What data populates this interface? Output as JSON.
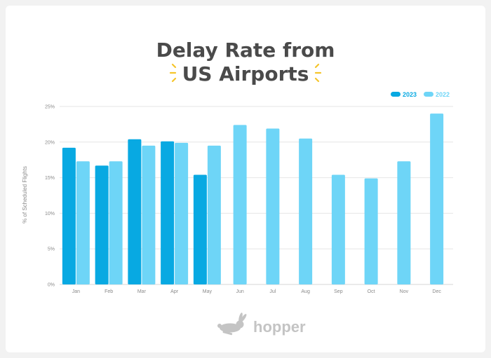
{
  "title_line1": "Delay Rate from",
  "title_line2": "US Airports",
  "brand": "hopper",
  "colors": {
    "s2023": "#08a9e2",
    "s2022": "#6ed5f7",
    "sparkle": "#f5c52b",
    "grid": "#e6e6e6"
  },
  "chart_data": {
    "type": "bar",
    "title": "Delay Rate from US Airports",
    "ylabel": "% of Scheduled Flights",
    "xlabel": "",
    "ylim": [
      0,
      25
    ],
    "yticks": [
      "0%",
      "5%",
      "10%",
      "15%",
      "20%",
      "25%"
    ],
    "grid": true,
    "legend": "top-right",
    "categories": [
      "Jan",
      "Feb",
      "Mar",
      "Apr",
      "May",
      "Jun",
      "Jul",
      "Aug",
      "Sep",
      "Oct",
      "Nov",
      "Dec"
    ],
    "series": [
      {
        "name": "2023",
        "values": [
          19.2,
          16.7,
          20.4,
          20.1,
          15.4,
          null,
          null,
          null,
          null,
          null,
          null,
          null
        ]
      },
      {
        "name": "2022",
        "values": [
          17.3,
          17.3,
          19.5,
          19.9,
          19.5,
          22.4,
          21.9,
          20.5,
          15.4,
          14.9,
          17.3,
          24.0
        ]
      }
    ]
  }
}
